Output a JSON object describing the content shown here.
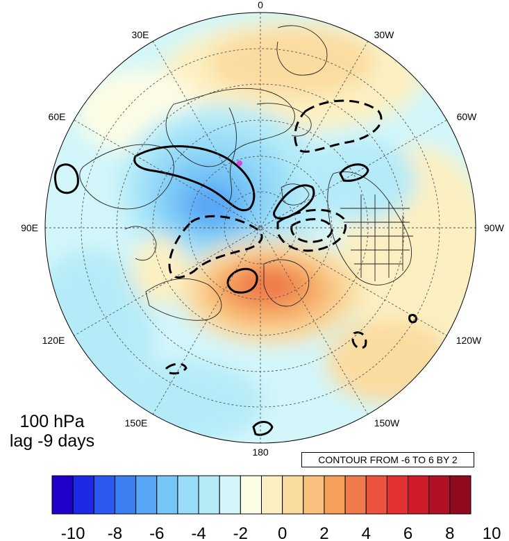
{
  "level_label": "100 hPa",
  "lag_label": "lag -9 days",
  "contour_info": "CONTOUR FROM -6 TO 6 BY 2",
  "longitude_labels": {
    "top": "0",
    "bottom": "180",
    "left": "90E",
    "right": "90W",
    "upper_left_1": "30E",
    "upper_left_2": "60E",
    "upper_right_1": "30W",
    "upper_right_2": "60W",
    "lower_left_1": "120E",
    "lower_left_2": "150E",
    "lower_right_1": "120W",
    "lower_right_2": "150W"
  },
  "colorbar": {
    "colors": [
      "#1f00c8",
      "#1c2ae6",
      "#2c5af0",
      "#3b7ff2",
      "#58a6f5",
      "#78c6f7",
      "#98dcf8",
      "#b5ebf8",
      "#d3f6fa",
      "#fdfde6",
      "#fcf0c2",
      "#fbdca0",
      "#f8c07c",
      "#f49f5c",
      "#ef7a4b",
      "#ec5440",
      "#e53131",
      "#d01b2b",
      "#b01125",
      "#8f0a1e"
    ],
    "labels": [
      "-10",
      "-8",
      "-6",
      "-4",
      "-2",
      "0",
      "2",
      "4",
      "6",
      "8",
      "10"
    ]
  },
  "colors": {
    "cold_core": "#3b7ff2",
    "warm_core": "#ef7a4b",
    "land_line": "#222222",
    "contour": "#000000",
    "marker": "#e040e0"
  }
}
